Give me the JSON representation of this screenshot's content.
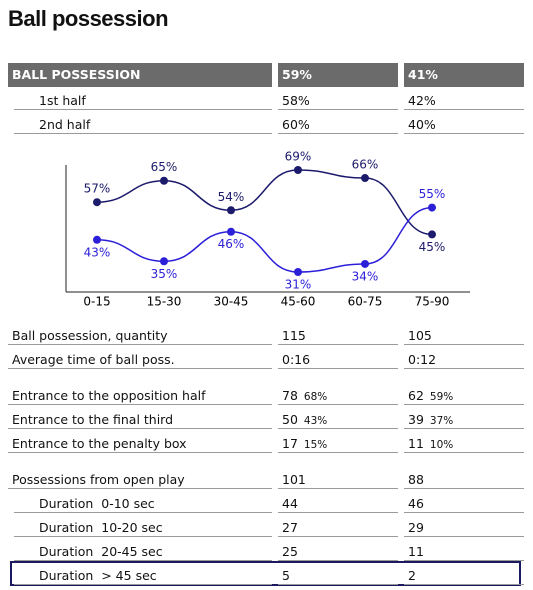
{
  "title": "Ball possession",
  "summary": {
    "header": [
      "BALL POSSESSION",
      "59%",
      "41%"
    ],
    "rows": [
      [
        "1st half",
        "58%",
        "42%"
      ],
      [
        "2nd half",
        "60%",
        "40%"
      ]
    ]
  },
  "chart_data": {
    "type": "line",
    "categories": [
      "0-15",
      "15-30",
      "30-45",
      "45-60",
      "60-75",
      "75-90"
    ],
    "series": [
      {
        "color": "#1c1a6b",
        "values": [
          57,
          65,
          54,
          69,
          66,
          45
        ],
        "value_labels": [
          "57%",
          "65%",
          "54%",
          "69%",
          "66%",
          "45%"
        ]
      },
      {
        "color": "#2b1fd8",
        "values": [
          43,
          35,
          46,
          31,
          34,
          55
        ],
        "value_labels": [
          "43%",
          "35%",
          "46%",
          "31%",
          "34%",
          "55%"
        ]
      }
    ]
  },
  "stats": [
    [
      [
        "Ball possession, quantity",
        115,
        105
      ],
      [
        "Average time of ball poss.",
        "0:16",
        "0:12"
      ]
    ],
    [
      [
        "Entrance to the opposition half",
        {
          "value": 78,
          "share": "68%"
        },
        {
          "value": 62,
          "share": "59%"
        }
      ],
      [
        "Entrance to the final third",
        {
          "value": 50,
          "share": "43%"
        },
        {
          "value": 39,
          "share": "37%"
        }
      ],
      [
        "Entrance to the penalty box",
        {
          "value": 17,
          "share": "15%"
        },
        {
          "value": 11,
          "share": "10%"
        }
      ]
    ],
    [
      [
        "Possessions from open play",
        101,
        88
      ],
      [
        "Duration  0-10 sec",
        44,
        46
      ],
      [
        "Duration  10-20 sec",
        27,
        29
      ],
      [
        "Duration  20-45 sec",
        25,
        11
      ],
      [
        "Duration  > 45 sec",
        5,
        2
      ]
    ]
  ]
}
